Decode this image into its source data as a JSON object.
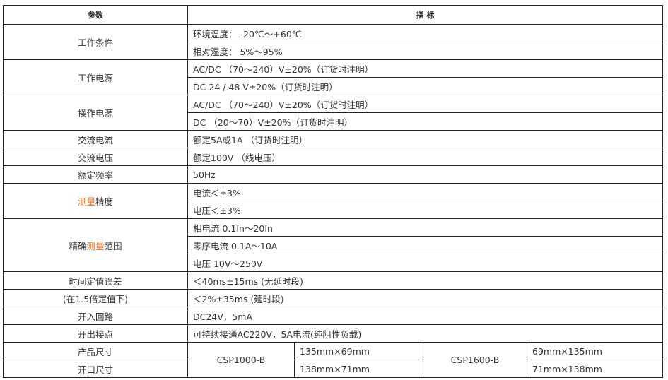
{
  "header": {
    "param": "参数",
    "spec": "指 标"
  },
  "rows": [
    {
      "name": "工作条件",
      "values": [
        "环境温度：  -20℃～+60℃",
        "相对湿度：  5%～95%"
      ]
    },
    {
      "name": "工作电源",
      "values": [
        "AC/DC （70～240）V±20%（订货时注明）",
        "DC   24 / 48   V±20%（订货时注明）"
      ]
    },
    {
      "name": "操作电源",
      "values": [
        "AC/DC （70～240）V±20%（订货时注明）",
        "DC    （20～70）V±20%（订货时注明）"
      ]
    },
    {
      "name": "交流电流",
      "values": [
        "额定5A或1A  （订货时注明）"
      ]
    },
    {
      "name": "交流电压",
      "values": [
        "额定100V    （线电压）"
      ]
    },
    {
      "name": "额定频率",
      "values": [
        "50Hz"
      ]
    },
    {
      "name_pre": "",
      "name_hl": "测量",
      "name_post": "精度",
      "values": [
        "电流＜±3%",
        "电压＜±3%"
      ]
    },
    {
      "name_pre": "精确",
      "name_hl": "测量",
      "name_post": "范围",
      "values": [
        "相电流  0.1In～20In",
        "零序电流 0.1A～10A",
        "电压   10V～250V"
      ]
    },
    {
      "name": "时间定值误差",
      "name2": "(在1.5倍定值下)",
      "values": [
        "＜40ms±15ms (无延时段)",
        "＜2%±35ms  (延时段)"
      ]
    },
    {
      "name": "开入回路",
      "values": [
        "DC24V，5mA"
      ]
    },
    {
      "name": "开出接点",
      "values": [
        "可持续接通AC220V，5A电流(纯阻性负载)"
      ]
    }
  ],
  "size": {
    "label1": "产品尺寸",
    "label2": "开口尺寸",
    "model1": "CSP1000-B",
    "m1_product": "135mm×69mm",
    "m1_cutout": "138mm×71mm",
    "model2": "CSP1600-B",
    "m2_product": "69mm×135mm",
    "m2_cutout": "71mm×138mm"
  },
  "colors": {
    "highlight": "#e06c1a"
  }
}
